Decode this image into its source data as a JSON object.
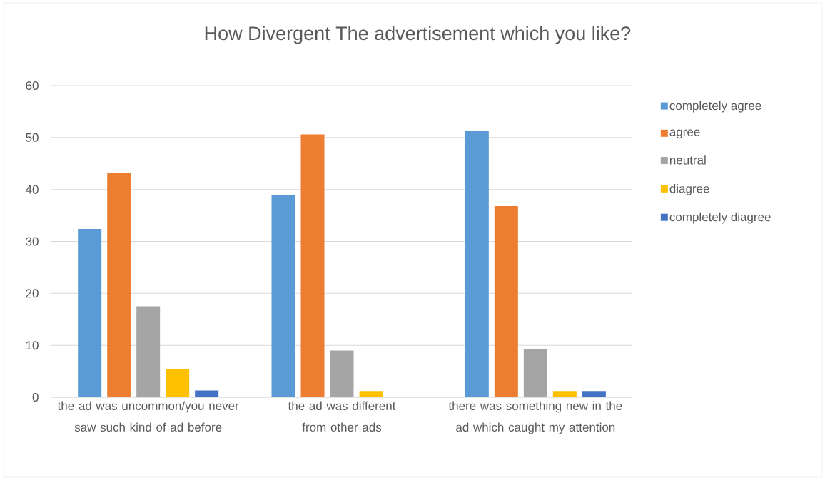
{
  "chart_data": {
    "type": "bar",
    "title": "How Divergent The advertisement which you like?",
    "categories": [
      "the ad was uncommon/you never saw such kind of ad before",
      "the ad was different from other ads",
      "there was something new in the ad which caught my attention"
    ],
    "series": [
      {
        "name": "completely agree",
        "color": "#5b9bd5",
        "values": [
          32.4,
          38.9,
          51.3
        ]
      },
      {
        "name": "agree",
        "color": "#ed7d31",
        "values": [
          43.2,
          50.6,
          36.8
        ]
      },
      {
        "name": "neutral",
        "color": "#a5a5a5",
        "values": [
          17.5,
          9.0,
          9.2
        ]
      },
      {
        "name": "diagree",
        "color": "#ffc000",
        "values": [
          5.4,
          1.2,
          1.2
        ]
      },
      {
        "name": "completely diagree",
        "color": "#4472c4",
        "values": [
          1.3,
          null,
          1.2
        ]
      }
    ],
    "ylim": [
      0,
      60
    ],
    "yticks": [
      0,
      10,
      20,
      30,
      40,
      50,
      60
    ],
    "grid": "y",
    "legend": "right"
  }
}
